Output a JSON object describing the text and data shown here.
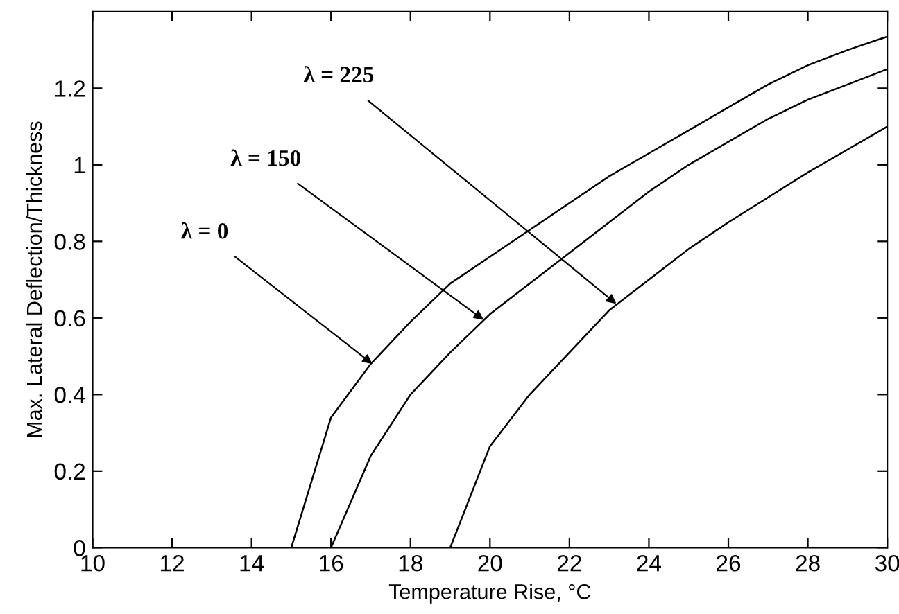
{
  "chart_data": {
    "type": "line",
    "xlabel": "Temperature Rise, °C",
    "ylabel": "Max. Lateral Deflection/Thickness",
    "xlim": [
      10,
      30
    ],
    "xticks": [
      10,
      12,
      14,
      16,
      18,
      20,
      22,
      24,
      26,
      28,
      30
    ],
    "ylim": [
      0,
      1.4
    ],
    "yticks": [
      0,
      0.2,
      0.4,
      0.6,
      0.8,
      1,
      1.2
    ],
    "grid": false,
    "legend": false,
    "marker": "none",
    "line_style": "solid",
    "series": [
      {
        "color": "#000000",
        "x": [
          15,
          16,
          17,
          18,
          19,
          20,
          21,
          22,
          23,
          24,
          25,
          26,
          27,
          28,
          29,
          30
        ],
        "values": [
          0,
          0.34,
          0.48,
          0.59,
          0.69,
          0.76,
          0.83,
          0.9,
          0.97,
          1.03,
          1.09,
          1.15,
          1.21,
          1.26,
          1.3,
          1.335
        ]
      },
      {
        "color": "#000000",
        "x": [
          16,
          17,
          18,
          19,
          20,
          21,
          22,
          23,
          24,
          25,
          26,
          27,
          28,
          29,
          30
        ],
        "values": [
          0,
          0.24,
          0.4,
          0.51,
          0.61,
          0.69,
          0.77,
          0.85,
          0.93,
          1.0,
          1.06,
          1.12,
          1.17,
          1.21,
          1.25
        ]
      },
      {
        "color": "#000000",
        "x": [
          19,
          20,
          21,
          22,
          23,
          24,
          25,
          26,
          27,
          28,
          29,
          30
        ],
        "values": [
          0,
          0.265,
          0.4,
          0.51,
          0.62,
          0.7,
          0.78,
          0.85,
          0.915,
          0.98,
          1.04,
          1.1
        ]
      }
    ],
    "annotations": [
      {
        "text": "λ = 0",
        "x": 17.04,
        "y": 0.48
      },
      {
        "text": "λ = 150",
        "x": 19.84,
        "y": 0.595
      },
      {
        "text": "λ = 225",
        "x": 23.18,
        "y": 0.637
      }
    ]
  }
}
